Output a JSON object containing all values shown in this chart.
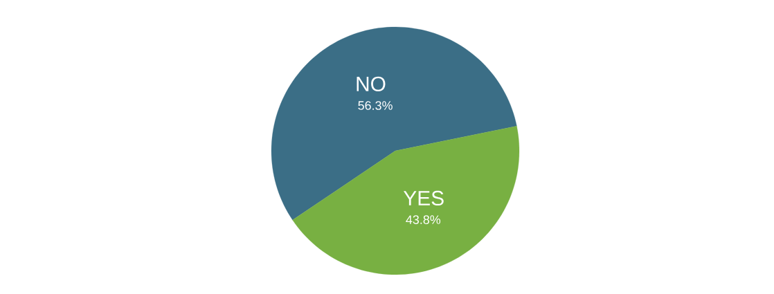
{
  "chart_data": {
    "type": "pie",
    "categories": [
      "NO",
      "YES"
    ],
    "values": [
      56.3,
      43.8
    ],
    "colors": [
      "#3b6e86",
      "#78b042"
    ],
    "value_labels": [
      "56.3%",
      "43.8%"
    ]
  }
}
